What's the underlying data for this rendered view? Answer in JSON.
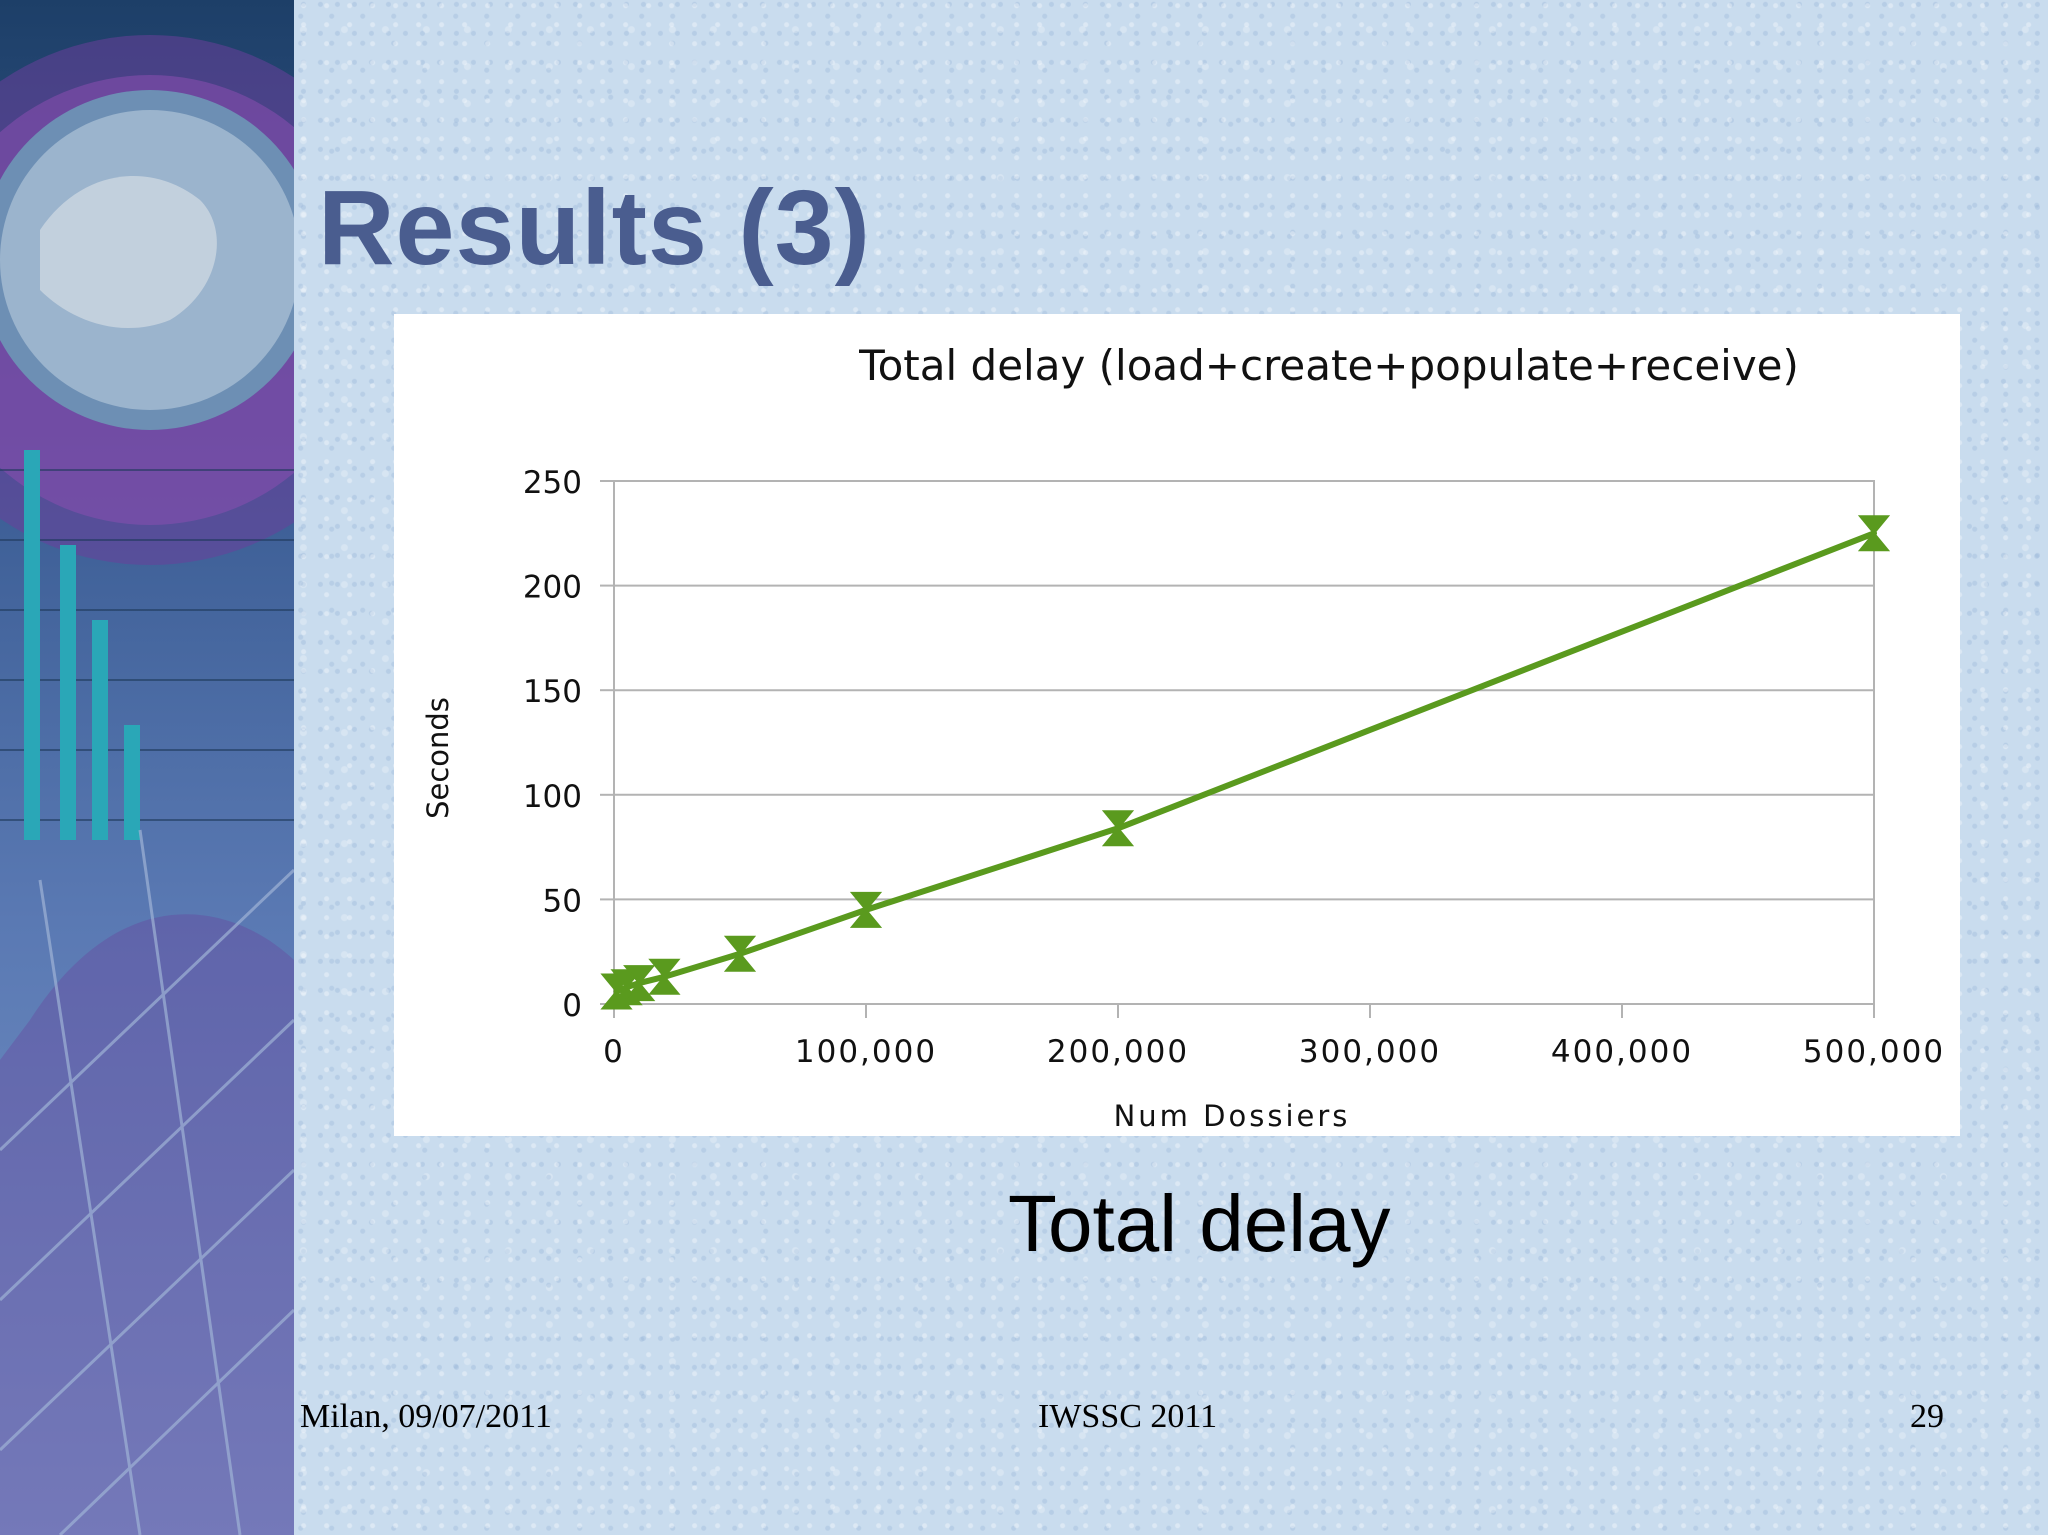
{
  "slide": {
    "title": "Results (3)",
    "caption": "Total delay",
    "footer_left": "Milan, 09/07/2011",
    "footer_center": "IWSSC 2011",
    "footer_right": "29"
  },
  "colors": {
    "title": "#4a5d8f",
    "series": "#5a9a1e",
    "grid": "#b3b3b3"
  },
  "chart_data": {
    "type": "line",
    "title": "Total delay  (load+create+populate+receive)",
    "xlabel": "Num Dossiers",
    "ylabel": "Seconds",
    "xlim": [
      0,
      500000
    ],
    "ylim": [
      0,
      250
    ],
    "xticks": [
      0,
      100000,
      200000,
      300000,
      400000,
      500000
    ],
    "xtick_labels": [
      "0",
      "100,000",
      "200,000",
      "300,000",
      "400,000",
      "500,000"
    ],
    "yticks": [
      0,
      50,
      100,
      150,
      200,
      250
    ],
    "ytick_labels": [
      "0",
      "50",
      "100",
      "150",
      "200",
      "250"
    ],
    "grid": true,
    "legend": "none",
    "series": [
      {
        "color": "#5a9a1e",
        "marker": "hourglass error bar",
        "points": [
          {
            "x": 1000,
            "y": 6
          },
          {
            "x": 5000,
            "y": 8
          },
          {
            "x": 10000,
            "y": 10
          },
          {
            "x": 20000,
            "y": 13
          },
          {
            "x": 50000,
            "y": 24
          },
          {
            "x": 100000,
            "y": 45
          },
          {
            "x": 200000,
            "y": 84
          },
          {
            "x": 500000,
            "y": 225
          }
        ]
      }
    ]
  }
}
